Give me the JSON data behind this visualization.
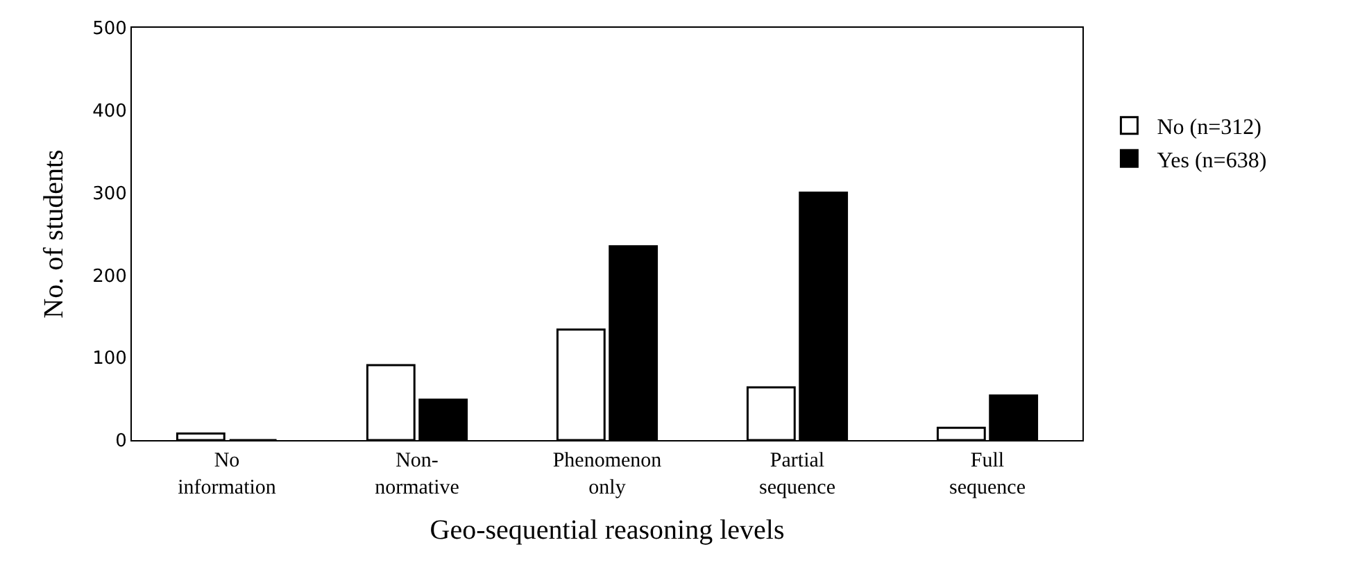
{
  "chart_data": {
    "type": "bar",
    "xlabel": "Geo-sequential reasoning levels",
    "ylabel": "No. of students",
    "categories": [
      "No\ninformation",
      "Non-\nnormative",
      "Phenomenon\nonly",
      "Partial\nsequence",
      "Full\nsequence"
    ],
    "series": [
      {
        "name": "No (n=312)",
        "color": "#ffffff",
        "values": [
          8,
          91,
          134,
          64,
          15
        ]
      },
      {
        "name": "Yes (n=638)",
        "color": "#000000",
        "values": [
          0,
          49,
          235,
          300,
          54
        ]
      }
    ],
    "ylim": [
      0,
      500
    ],
    "yticks": [
      0,
      100,
      200,
      300,
      400,
      500
    ],
    "legend": "right"
  }
}
